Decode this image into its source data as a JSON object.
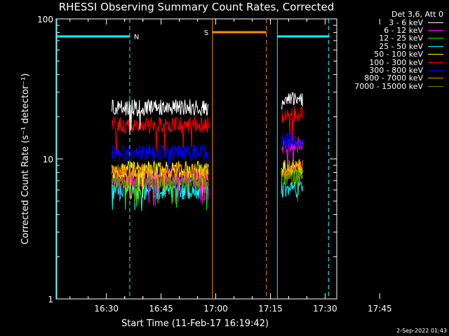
{
  "chart_data": {
    "type": "line",
    "title": "RHESSI Observing Summary Count Rates, Corrected",
    "xlabel": "Start Time (11-Feb-17 16:19:42)",
    "ylabel": "Corrected Count Rate (s⁻¹ detector⁻¹)",
    "y_scale": "log",
    "ylim": [
      1,
      100
    ],
    "y_ticks": [
      "1",
      "10",
      "100"
    ],
    "x_range_min": [
      -3.5,
      73.5
    ],
    "x_ticks": [
      "16:30",
      "16:45",
      "17:00",
      "17:15",
      "17:30",
      "17:45"
    ],
    "x_tick_minutes": [
      10.3,
      25.3,
      40.3,
      55.3,
      70.3,
      85.3
    ],
    "legend_header": "Det 3,6, Att 0",
    "series": [
      {
        "name": "3 - 6 keV",
        "color": "#ffffff",
        "segments": [
          [
            11.8,
            38.3,
            23.0
          ],
          [
            58.3,
            64.3,
            25.8
          ]
        ]
      },
      {
        "name": "6 - 12 keV",
        "color": "#ff00ff",
        "segments": [
          [
            11.8,
            38.3,
            7.2
          ],
          [
            58.3,
            64.3,
            12.5
          ]
        ]
      },
      {
        "name": "12 - 25 keV",
        "color": "#00ff00",
        "segments": [
          [
            11.8,
            38.3,
            6.8
          ],
          [
            58.3,
            64.3,
            7.5
          ]
        ]
      },
      {
        "name": "25 - 50 keV",
        "color": "#00ffff",
        "segments": [
          [
            11.8,
            38.3,
            5.8
          ],
          [
            58.3,
            64.3,
            6.0
          ]
        ]
      },
      {
        "name": "50 - 100 keV",
        "color": "#ffff00",
        "segments": [
          [
            11.8,
            38.3,
            8.3
          ],
          [
            58.3,
            64.3,
            8.8
          ]
        ]
      },
      {
        "name": "100 - 300 keV",
        "color": "#ff0000",
        "segments": [
          [
            11.8,
            38.3,
            17.2
          ],
          [
            58.3,
            64.3,
            20.5
          ]
        ]
      },
      {
        "name": "300 - 800 keV",
        "color": "#0000ff",
        "segments": [
          [
            11.8,
            38.3,
            11.0
          ],
          [
            58.3,
            64.3,
            13.5
          ]
        ]
      },
      {
        "name": "800 - 7000 keV",
        "color": "#ff8c00",
        "segments": [
          [
            11.8,
            38.3,
            8.0
          ],
          [
            58.3,
            64.3,
            8.5
          ]
        ]
      },
      {
        "name": "7000 - 15000 keV",
        "color": "#808000",
        "segments": [
          [
            11.8,
            38.3,
            7.0
          ],
          [
            58.3,
            64.3,
            7.3
          ]
        ]
      }
    ],
    "markers": {
      "cyan_color": "#00ffff",
      "orange_color": "#ff8c00",
      "night_label": "N",
      "saa_label": "S",
      "night_intervals": [
        [
          -3.3,
          16.7
        ],
        [
          57.2,
          71.3
        ]
      ],
      "saa_interval": [
        39.4,
        54.2
      ],
      "cyan_dashed_x": [
        16.7,
        71.3
      ],
      "cyan_solid_x": [
        -3.3,
        57.2
      ],
      "orange_solid_x": [
        39.4
      ],
      "orange_dashed_x": [
        54.2
      ],
      "marker_level": 75
    }
  },
  "timestamp": "2-Sep-2022 01:43"
}
